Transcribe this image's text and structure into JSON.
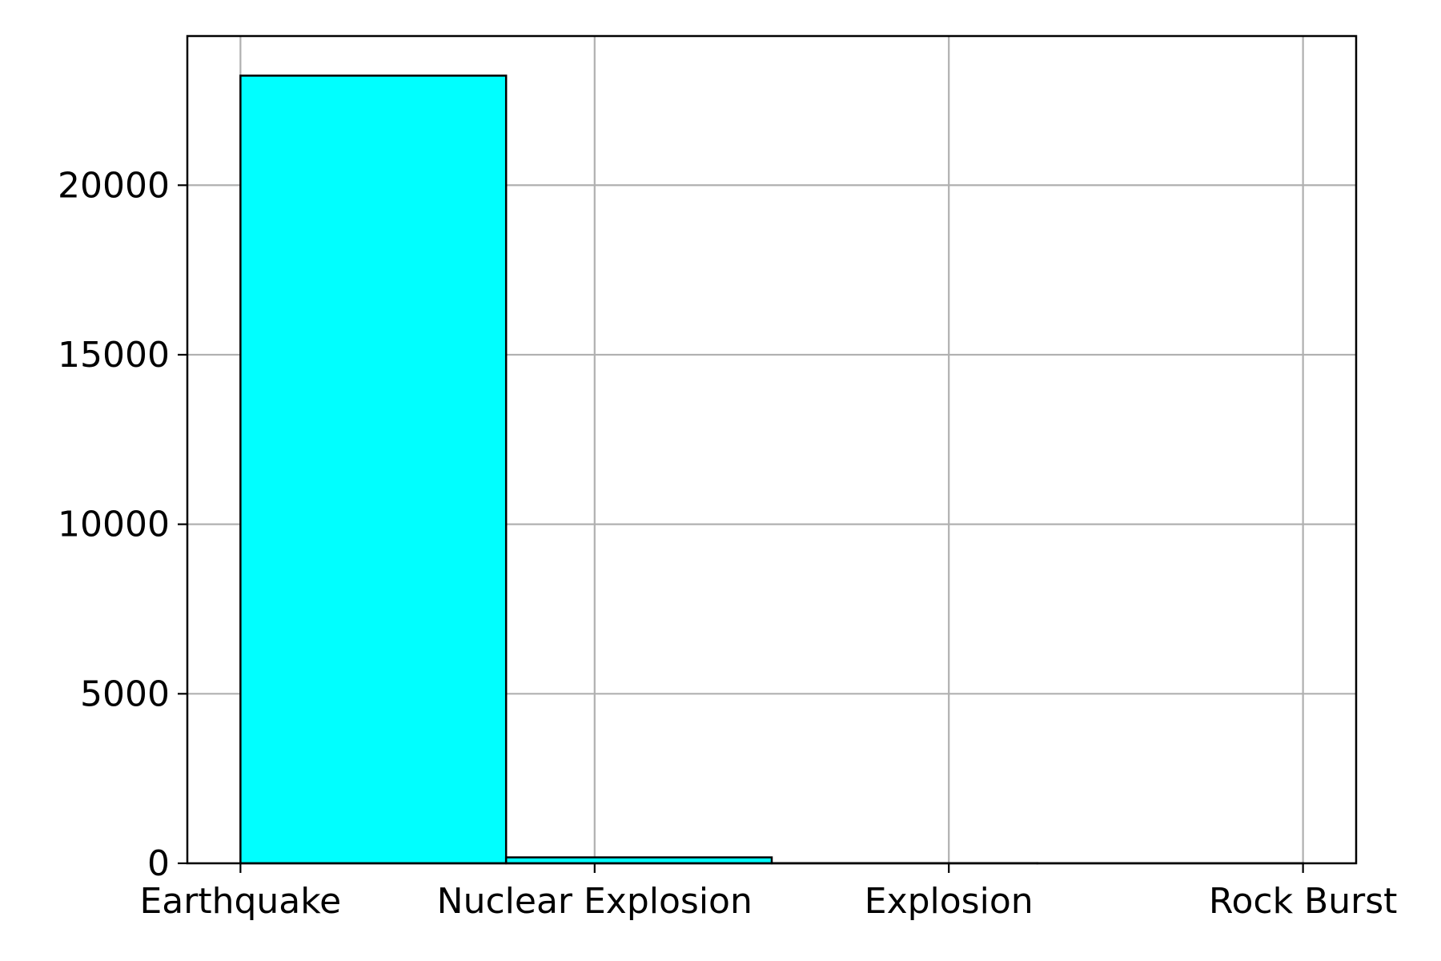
{
  "chart_data": {
    "type": "bar",
    "title": "",
    "xlabel": "",
    "ylabel": "",
    "bins": [
      {
        "x_start": 0,
        "x_end": 0.75,
        "value": 23232
      },
      {
        "x_start": 0.75,
        "x_end": 1.5,
        "value": 175
      },
      {
        "x_start": 1.5,
        "x_end": 2.25,
        "value": 4
      },
      {
        "x_start": 2.25,
        "x_end": 3,
        "value": 1
      }
    ],
    "xticks": [
      {
        "value": 0,
        "label": "Earthquake"
      },
      {
        "value": 1,
        "label": "Nuclear Explosion"
      },
      {
        "value": 2,
        "label": "Explosion"
      },
      {
        "value": 3,
        "label": "Rock Burst"
      }
    ],
    "yticks": [
      0,
      5000,
      10000,
      15000,
      20000
    ],
    "xlim": [
      -0.15,
      3.15
    ],
    "ylim": [
      0,
      24400
    ],
    "grid": true,
    "bar_color": "#00ffff",
    "edge_color": "#000000",
    "grid_color": "#b0b0b0"
  }
}
